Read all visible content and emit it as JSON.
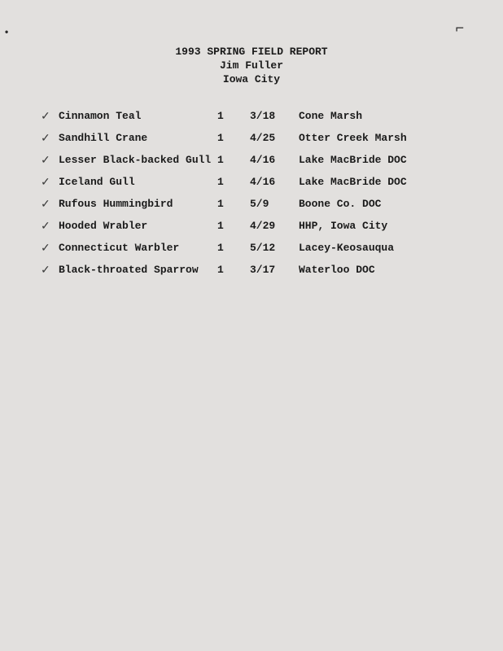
{
  "header": {
    "title": "1993 SPRING FIELD REPORT",
    "author": "Jim Fuller",
    "location": "Iowa City"
  },
  "records": [
    {
      "checked": true,
      "species": "Cinnamon Teal",
      "count": "1",
      "date": "3/18",
      "location": "Cone Marsh"
    },
    {
      "checked": true,
      "species": "Sandhill Crane",
      "count": "1",
      "date": "4/25",
      "location": "Otter Creek Marsh"
    },
    {
      "checked": true,
      "species": "Lesser Black-backed Gull",
      "count": "1",
      "date": "4/16",
      "location": "Lake MacBride DOC"
    },
    {
      "checked": true,
      "species": "Iceland Gull",
      "count": "1",
      "date": "4/16",
      "location": "Lake MacBride DOC"
    },
    {
      "checked": true,
      "species": "Rufous Hummingbird",
      "count": "1",
      "date": "5/9",
      "location": "Boone Co. DOC"
    },
    {
      "checked": true,
      "species": "Hooded Wrabler",
      "count": "1",
      "date": "4/29",
      "location": "HHP, Iowa City"
    },
    {
      "checked": true,
      "species": "Connecticut Warbler",
      "count": "1",
      "date": "5/12",
      "location": "Lacey-Keosauqua"
    },
    {
      "checked": true,
      "species": "Black-throated Sparrow",
      "count": "1",
      "date": "3/17",
      "location": "Waterloo DOC"
    }
  ],
  "marks": {
    "corner": "⌐",
    "left": "•"
  }
}
